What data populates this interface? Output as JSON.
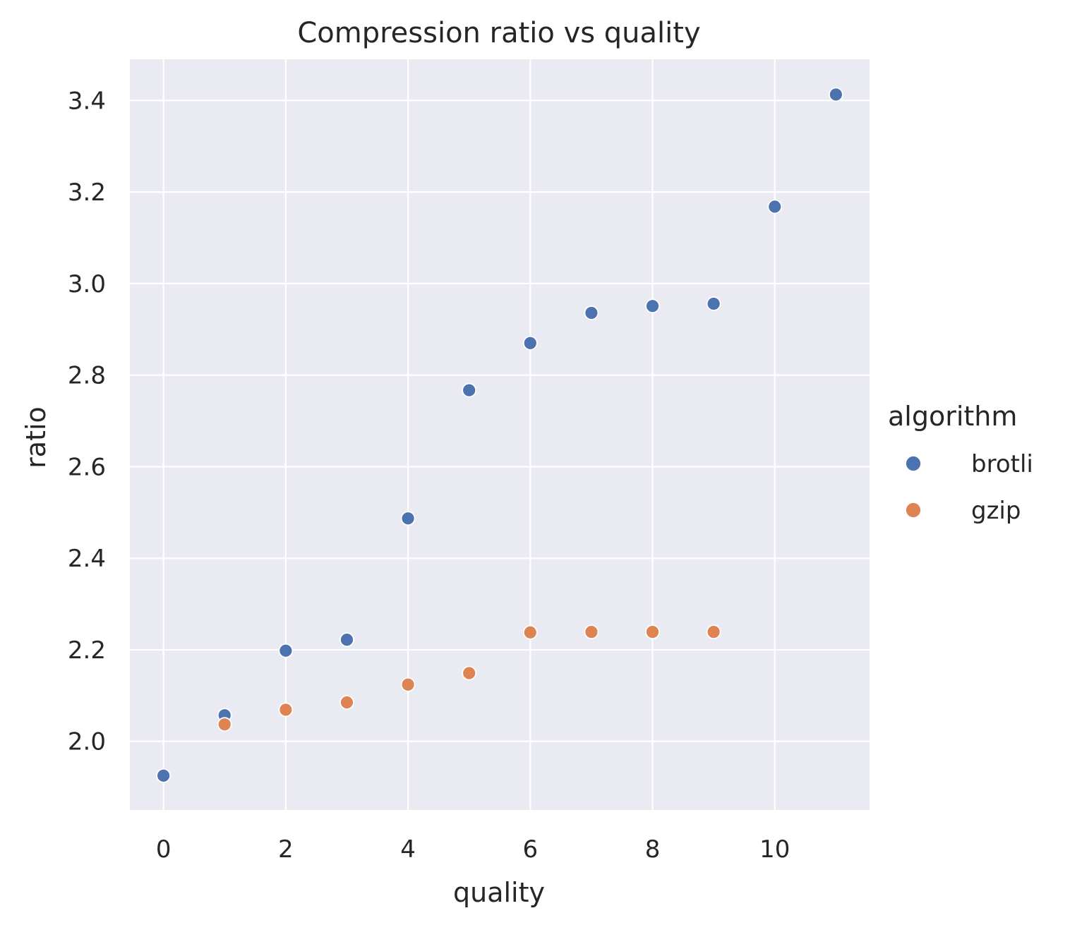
{
  "chart_data": {
    "type": "scatter",
    "title": "Compression ratio vs quality",
    "xlabel": "quality",
    "ylabel": "ratio",
    "xlim": [
      -0.55,
      11.55
    ],
    "ylim": [
      1.85,
      3.49
    ],
    "xticks": [
      0,
      2,
      4,
      6,
      8,
      10
    ],
    "xtick_labels": [
      "0",
      "2",
      "4",
      "6",
      "8",
      "10"
    ],
    "yticks": [
      2.0,
      2.2,
      2.4,
      2.6,
      2.8,
      3.0,
      3.2,
      3.4
    ],
    "ytick_labels": [
      "2.0",
      "2.2",
      "2.4",
      "2.6",
      "2.8",
      "3.0",
      "3.2",
      "3.4"
    ],
    "grid": true,
    "legend": {
      "title": "algorithm",
      "placement": "right"
    },
    "colors": {
      "background": "#eaeaf2",
      "grid": "#ffffff"
    },
    "series": [
      {
        "name": "brotli",
        "color": "#4c72b0",
        "x": [
          0,
          1,
          2,
          3,
          4,
          5,
          6,
          7,
          8,
          9,
          10,
          11
        ],
        "y": [
          1.925,
          2.057,
          2.198,
          2.222,
          2.487,
          2.767,
          2.87,
          2.936,
          2.951,
          2.956,
          3.168,
          3.413
        ]
      },
      {
        "name": "gzip",
        "color": "#dd8452",
        "x": [
          1,
          2,
          3,
          4,
          5,
          6,
          7,
          8,
          9
        ],
        "y": [
          2.037,
          2.069,
          2.085,
          2.124,
          2.149,
          2.238,
          2.239,
          2.239,
          2.239
        ]
      }
    ]
  }
}
